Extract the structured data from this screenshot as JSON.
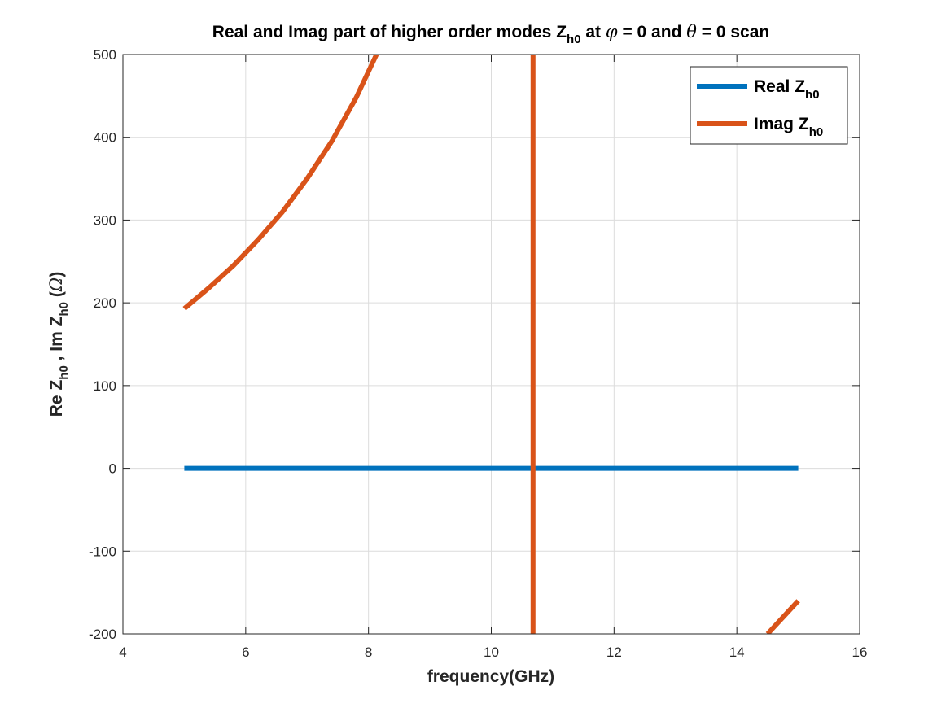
{
  "chart_data": {
    "type": "line",
    "title": {
      "prefix": "Real and Imag part of higher order modes Z",
      "sub": "h0",
      "mid1": " at ",
      "phi": "φ",
      "mid2": " = 0 and ",
      "theta": "θ",
      "suffix": " = 0 scan"
    },
    "xlabel": "frequency(GHz)",
    "ylabel": {
      "p1": "Re Z",
      "s1": "h0",
      "p2": " , Im Z",
      "s2": "h0",
      "p3": " (",
      "omega": "Ω",
      "p4": ")"
    },
    "xlim": [
      4,
      16
    ],
    "ylim": [
      -200,
      500
    ],
    "xticks": [
      4,
      6,
      8,
      10,
      12,
      14,
      16
    ],
    "yticks": [
      -200,
      -100,
      0,
      100,
      200,
      300,
      400,
      500
    ],
    "grid": true,
    "legend_position": "top-right",
    "series": [
      {
        "name": "Real Z",
        "name_sub": "h0",
        "color": "#0072BD",
        "x": [
          5,
          15
        ],
        "y": [
          0,
          0
        ]
      },
      {
        "name": "Imag Z",
        "name_sub": "h0",
        "color": "#D95319",
        "pole_x": 10.68,
        "segments": [
          {
            "x": [
              5.0,
              5.4,
              5.8,
              6.2,
              6.6,
              7.0,
              7.4,
              7.8,
              8.13
            ],
            "y": [
              193,
              218,
              245,
              276,
              310,
              350,
              395,
              448,
              500
            ]
          },
          {
            "x": [
              14.5,
              14.75,
              15.0
            ],
            "y": [
              -200,
              -180,
              -160
            ]
          }
        ]
      }
    ]
  }
}
